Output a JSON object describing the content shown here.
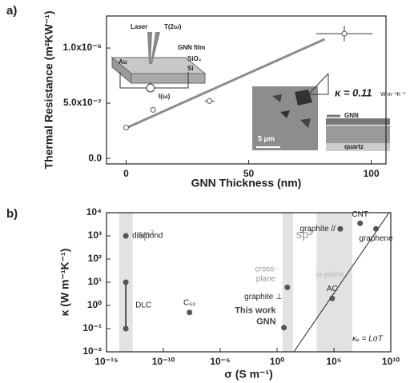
{
  "chart_data": [
    {
      "type": "scatter",
      "panel": "a)",
      "x_label": "GNN Thickness (nm)",
      "y_label": "Thermal Resistance (m²KW⁻¹)",
      "xlim": [
        -8,
        106
      ],
      "ylim": [
        -5e-08,
        1.29e-06
      ],
      "xticks": [
        0,
        50,
        100
      ],
      "yticks": [
        {
          "value": 0,
          "label": "0.0"
        },
        {
          "value": 5e-07,
          "label": "5.0x10⁻⁷"
        },
        {
          "value": 1e-06,
          "label": "1.0x10⁻⁶"
        }
      ],
      "x": [
        0,
        11,
        34,
        89
      ],
      "values": [
        2.8e-07,
        4.4e-07,
        5.2e-07,
        1.13e-06
      ],
      "xerr": [
        0,
        1,
        2,
        11.5
      ],
      "yerr": [
        0,
        1.5e-08,
        1.5e-08,
        7e-08
      ],
      "color": "#555555",
      "fit": {
        "x": [
          0,
          81
        ],
        "values": [
          2.75e-07,
          1.08e-06
        ],
        "color": "#8c8c8c"
      },
      "slope_label": "κ = 0.11",
      "slope_unit": "W m⁻¹K⁻¹",
      "annotations": [
        "Laser",
        "T(2ω)",
        "GNN film",
        "SiO₂",
        "Si",
        "Au",
        "I(ω)",
        "5 μm",
        "GNN",
        "quartz"
      ]
    },
    {
      "type": "logscatter",
      "panel": "b)",
      "x_label": "σ (S m⁻¹)",
      "y_label": "κ (W m⁻¹K⁻¹)",
      "xscale": "log",
      "yscale": "log",
      "xlim": [
        1e-15,
        10000000000.0
      ],
      "ylim": [
        0.01,
        10000
      ],
      "xticks": [
        {
          "value": 1e-15,
          "label": "10⁻¹⁵"
        },
        {
          "value": 1e-10,
          "label": "10⁻¹⁰"
        },
        {
          "value": 1e-05,
          "label": "10⁻⁵"
        },
        {
          "value": 1,
          "label": "10⁰"
        },
        {
          "value": 100000.0,
          "label": "10⁵"
        },
        {
          "value": 10000000000.0,
          "label": "10¹⁰"
        }
      ],
      "yticks": [
        {
          "value": 0.01,
          "label": "10⁻²"
        },
        {
          "value": 0.1,
          "label": "10⁻¹"
        },
        {
          "value": 1,
          "label": "10⁰"
        },
        {
          "value": 10,
          "label": "10¹"
        },
        {
          "value": 100,
          "label": "10²"
        },
        {
          "value": 1000,
          "label": "10³"
        },
        {
          "value": 10000,
          "label": "10⁴"
        }
      ],
      "bands": [
        [
          1.3e-14,
          2e-13
        ],
        [
          3,
          25
        ],
        [
          3000,
          4000000
        ]
      ],
      "color": "#555555",
      "points": [
        {
          "name": "diamond",
          "x": 5e-14,
          "y": 1000
        },
        {
          "name": "DLC",
          "x": [
            5e-14,
            5e-14
          ],
          "y": [
            10,
            0.1
          ]
        },
        {
          "name": "C₆₀",
          "x": 2e-08,
          "y": 0.5
        },
        {
          "name": [
            "This work",
            "GNN"
          ],
          "x": 4,
          "y": 0.11
        },
        {
          "name": "graphite ⊥",
          "x": 8,
          "y": 6
        },
        {
          "name": "AC",
          "x": 70000,
          "y": 2
        },
        {
          "name": "graphite //",
          "x": 360000,
          "y": 2000
        },
        {
          "name": "CNT",
          "x": 20000000,
          "y": 3500
        },
        {
          "name": "graphene",
          "x": 500000000,
          "y": 2000
        }
      ],
      "line": {
        "name": "κₑ = LσT",
        "x": [
          30,
          7000000000
        ],
        "values": [
          0.01,
          10000
        ]
      },
      "annotations": [
        "sp³",
        "sp²",
        "cross-",
        "plane",
        "in-plane"
      ]
    }
  ]
}
